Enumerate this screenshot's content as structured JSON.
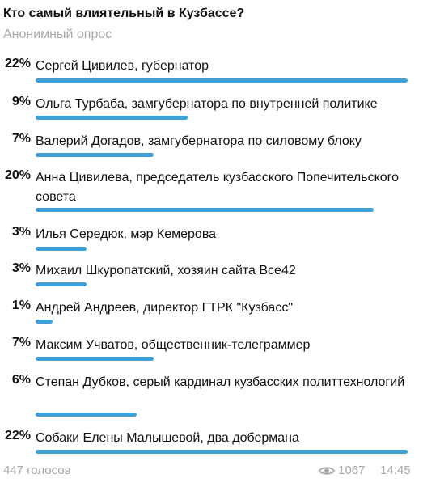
{
  "poll": {
    "question": "Кто самый влиятельный в Кузбассе?",
    "type": "Анонимный опрос",
    "options": [
      {
        "percent_label": "22%",
        "percent": 22,
        "label": "Сергей Цивилев, губернатор"
      },
      {
        "percent_label": "9%",
        "percent": 9,
        "label": "Ольга Турбаба, замгубернатора по внутренней политике"
      },
      {
        "percent_label": "7%",
        "percent": 7,
        "label": "Валерий Догадов, замгубернатора по силовому блоку"
      },
      {
        "percent_label": "20%",
        "percent": 20,
        "label": "Анна Цивилева, председатель кузбасского Попечительского совета"
      },
      {
        "percent_label": "3%",
        "percent": 3,
        "label": "Илья Середюк, мэр Кемерова"
      },
      {
        "percent_label": "3%",
        "percent": 3,
        "label": "Михаил Шкуропатский, хозяин сайта Все42"
      },
      {
        "percent_label": "1%",
        "percent": 1,
        "label": "Андрей Андреев, директор ГТРК \"Кузбасс\""
      },
      {
        "percent_label": "7%",
        "percent": 7,
        "label": "Максим Учватов, общественник-телеграммер"
      },
      {
        "percent_label": "6%",
        "percent": 6,
        "label": "Степан Дубков, серый кардинал кузбасских политтехнологий"
      },
      {
        "percent_label": "22%",
        "percent": 22,
        "label": "Собаки Елены Малышевой, два добермана"
      }
    ],
    "votes": "447 голосов",
    "views": "1067",
    "time": "14:45"
  },
  "colors": {
    "bar": "#3ea0d6",
    "muted": "#a8a8a8"
  },
  "icons": {
    "views": "eye-icon"
  }
}
